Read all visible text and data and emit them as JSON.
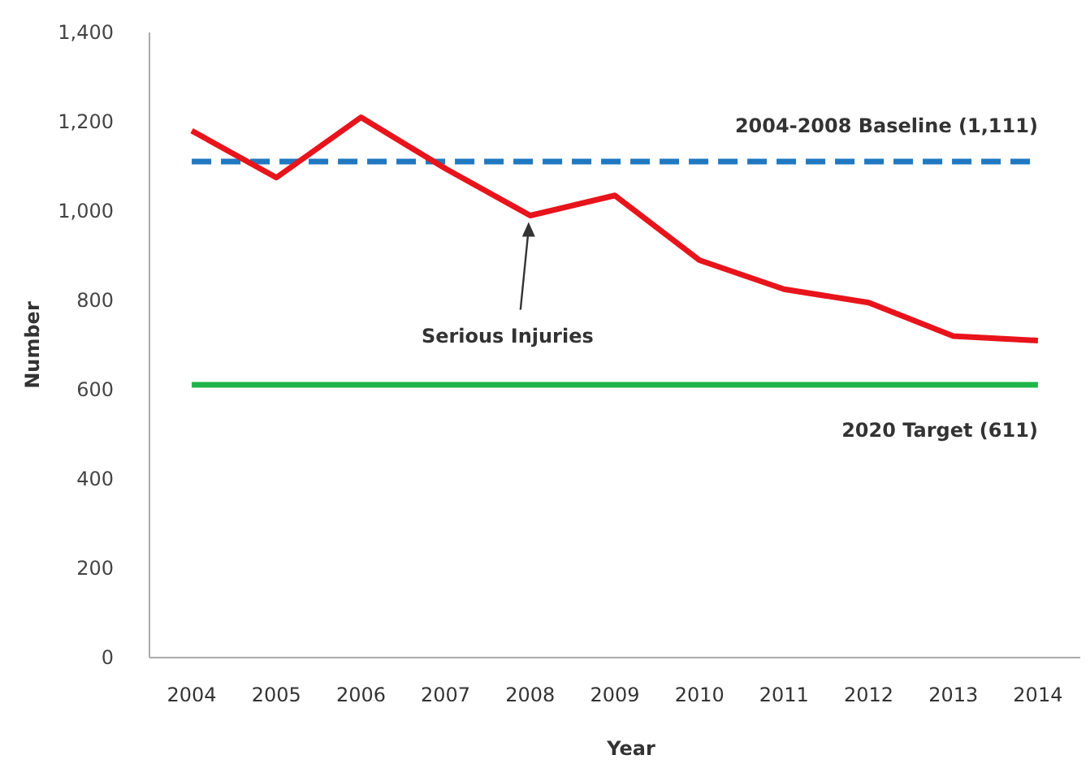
{
  "chart_data": {
    "type": "line",
    "xlabel": "Year",
    "ylabel": "Number",
    "categories": [
      "2004",
      "2005",
      "2006",
      "2007",
      "2008",
      "2009",
      "2010",
      "2011",
      "2012",
      "2013",
      "2014"
    ],
    "annotations": [
      {
        "text": "Serious Injuries",
        "x": "2008",
        "y": 990
      }
    ],
    "series": [
      {
        "color": "#e8141c",
        "values": [
          1180,
          1075,
          1210,
          1095,
          990,
          1035,
          890,
          825,
          795,
          720,
          710
        ]
      }
    ],
    "ylim": [
      0,
      1400
    ],
    "yticks": [
      {
        "value": 0,
        "label": "0"
      },
      {
        "value": 200,
        "label": "200"
      },
      {
        "value": 400,
        "label": "400"
      },
      {
        "value": 600,
        "label": "600"
      },
      {
        "value": 800,
        "label": "800"
      },
      {
        "value": 1000,
        "label": "1,000"
      },
      {
        "value": 1200,
        "label": "1,200"
      },
      {
        "value": 1400,
        "label": "1,400"
      }
    ],
    "ref_lines": [
      {
        "axis": "y",
        "value": 1111,
        "label": "2004-2008 Baseline (1,111)",
        "color": "#1f78c1",
        "line_style": "dashed"
      },
      {
        "axis": "y",
        "value": 611,
        "label": "2020 Target (611)",
        "color": "#1fb44a",
        "line_style": "solid"
      }
    ],
    "grid": false,
    "marker": "none",
    "line_style": "solid"
  }
}
